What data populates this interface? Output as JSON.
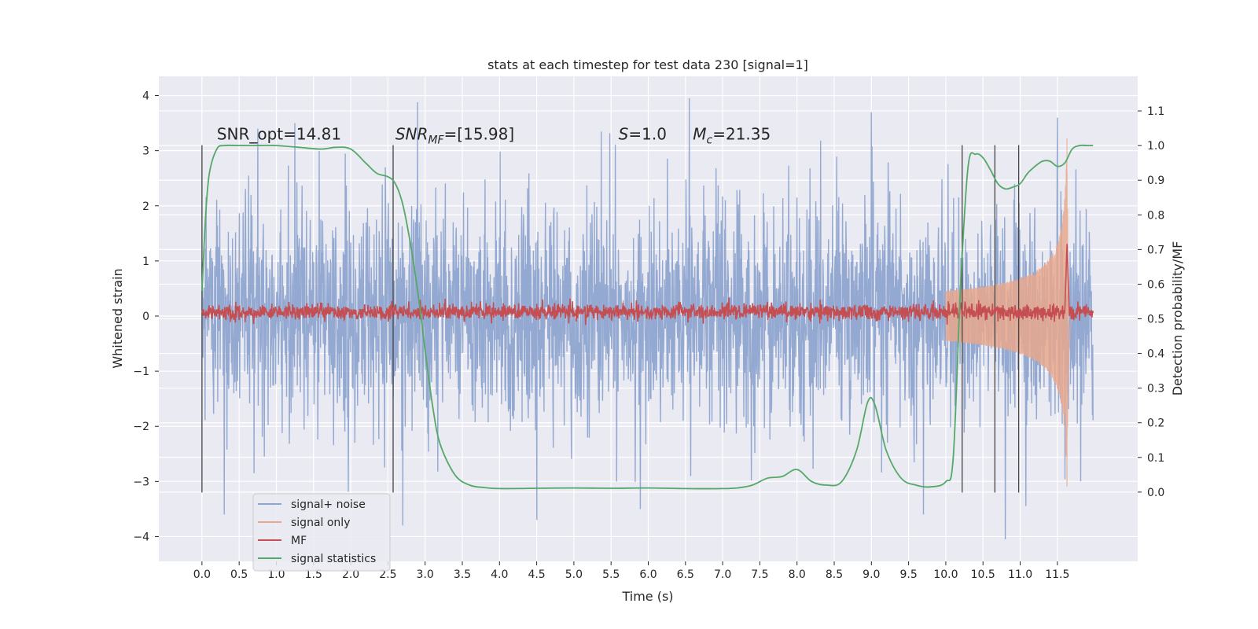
{
  "chart_data": {
    "type": "line",
    "title": "stats at each timestep for test data 230 [signal=1]",
    "xlabel": "Time (s)",
    "ylabel": "Whitened strain",
    "ylabel_right": "Detection probability/MF",
    "xlim": [
      -0.58,
      12.58
    ],
    "ylim": [
      -4.45,
      4.35
    ],
    "ylim_right": [
      -0.2,
      1.2
    ],
    "x_ticks": [
      0.0,
      0.5,
      1.0,
      1.5,
      2.0,
      2.5,
      3.0,
      3.5,
      4.0,
      4.5,
      5.0,
      5.5,
      6.0,
      6.5,
      7.0,
      7.5,
      8.0,
      8.5,
      9.0,
      9.5,
      10.0,
      10.5,
      11.0,
      11.5
    ],
    "x_tick_labels": [
      "0.0",
      "0.5",
      "1.0",
      "1.5",
      "2.0",
      "2.5",
      "3.0",
      "3.5",
      "4.0",
      "4.5",
      "5.0",
      "5.5",
      "6.0",
      "6.5",
      "7.0",
      "7.5",
      "8.0",
      "8.5",
      "9.0",
      "9.5",
      "10.0",
      "10.5",
      "11.0",
      "11.5"
    ],
    "y_ticks": [
      -4,
      -3,
      -2,
      -1,
      0,
      1,
      2,
      3,
      4
    ],
    "y_tick_labels": [
      "−4",
      "−3",
      "−2",
      "−1",
      "0",
      "1",
      "2",
      "3",
      "4"
    ],
    "y_right_ticks": [
      0.0,
      0.1,
      0.2,
      0.3,
      0.4,
      0.5,
      0.6,
      0.7,
      0.8,
      0.9,
      1.0,
      1.1
    ],
    "y_right_tick_labels": [
      "0.0",
      "0.1",
      "0.2",
      "0.3",
      "0.4",
      "0.5",
      "0.6",
      "0.7",
      "0.8",
      "0.9",
      "1.0",
      "1.1"
    ],
    "grid": true,
    "legend_position": "lower-left",
    "legend": [
      {
        "label": "signal+ noise",
        "color": "#8fa5cf"
      },
      {
        "label": "signal only",
        "color": "#e8a88e"
      },
      {
        "label": "MF",
        "color": "#c44e52"
      },
      {
        "label": "signal statistics",
        "color": "#55a868"
      }
    ],
    "annotations": [
      {
        "text": "SNR_opt=14.81",
        "x": 0.2,
        "y": 3.2
      },
      {
        "text": "SNR_MF=[15.98]",
        "x": 2.6,
        "y": 3.2
      },
      {
        "text": "S=1.0",
        "x": 5.6,
        "y": 3.2
      },
      {
        "text": "M_c=21.35",
        "x": 6.6,
        "y": 3.2
      }
    ],
    "vertical_lines_x": [
      0.0,
      2.57,
      10.22,
      10.66,
      10.98
    ],
    "vertical_lines_ylim": [
      -3.2,
      3.1
    ],
    "series": [
      {
        "name": "signal+ noise",
        "axis": "left",
        "kind": "noise",
        "x_range": [
          0.0,
          11.98
        ],
        "amplitude_rms": 1.0,
        "envelope_peaks": [
          {
            "x": 0.75,
            "y": 3.4
          },
          {
            "x": 1.25,
            "y": 3.5
          },
          {
            "x": 2.9,
            "y": 3.88
          },
          {
            "x": 6.55,
            "y": 3.95
          },
          {
            "x": 9.0,
            "y": 3.7
          },
          {
            "x": 11.5,
            "y": 3.6
          },
          {
            "x": 2.7,
            "y": -3.8
          },
          {
            "x": 10.8,
            "y": -4.05
          },
          {
            "x": 4.5,
            "y": -3.7
          },
          {
            "x": 0.3,
            "y": -3.6
          },
          {
            "x": 9.7,
            "y": -3.6
          }
        ]
      },
      {
        "name": "signal only",
        "axis": "left",
        "kind": "chirp",
        "x_range": [
          10.0,
          11.7
        ],
        "peak_x": 11.63,
        "peak_amplitude": 3.3
      },
      {
        "name": "MF",
        "axis": "right",
        "kind": "baseline",
        "x_range": [
          0.0,
          11.98
        ],
        "baseline": 0.52,
        "jitter": 0.012,
        "spike": {
          "x": 11.63,
          "y": 0.72
        }
      },
      {
        "name": "signal statistics",
        "axis": "right",
        "x": [
          0.0,
          0.05,
          0.1,
          0.2,
          0.3,
          0.5,
          0.8,
          1.0,
          1.3,
          1.6,
          1.8,
          2.0,
          2.2,
          2.35,
          2.5,
          2.6,
          2.7,
          2.8,
          2.9,
          3.0,
          3.1,
          3.2,
          3.4,
          3.6,
          3.8,
          4.0,
          4.5,
          5.0,
          5.5,
          6.0,
          6.5,
          7.0,
          7.2,
          7.4,
          7.6,
          7.8,
          8.0,
          8.2,
          8.4,
          8.6,
          8.8,
          8.95,
          9.05,
          9.2,
          9.4,
          9.6,
          9.8,
          10.0,
          10.1,
          10.2,
          10.3,
          10.4,
          10.5,
          10.6,
          10.7,
          10.8,
          10.9,
          11.0,
          11.1,
          11.2,
          11.3,
          11.4,
          11.5,
          11.6,
          11.7,
          11.8,
          11.9,
          11.98
        ],
        "y": [
          0.58,
          0.8,
          0.92,
          0.99,
          1.0,
          1.0,
          1.0,
          1.0,
          0.995,
          0.99,
          0.995,
          0.99,
          0.95,
          0.92,
          0.91,
          0.89,
          0.83,
          0.72,
          0.58,
          0.41,
          0.25,
          0.14,
          0.05,
          0.02,
          0.013,
          0.01,
          0.011,
          0.012,
          0.011,
          0.012,
          0.01,
          0.01,
          0.012,
          0.02,
          0.04,
          0.045,
          0.065,
          0.03,
          0.02,
          0.03,
          0.12,
          0.26,
          0.25,
          0.12,
          0.04,
          0.02,
          0.015,
          0.03,
          0.1,
          0.6,
          0.94,
          0.975,
          0.965,
          0.93,
          0.89,
          0.875,
          0.88,
          0.89,
          0.92,
          0.94,
          0.955,
          0.955,
          0.94,
          0.95,
          0.99,
          1.0,
          1.0,
          1.0
        ]
      }
    ]
  }
}
